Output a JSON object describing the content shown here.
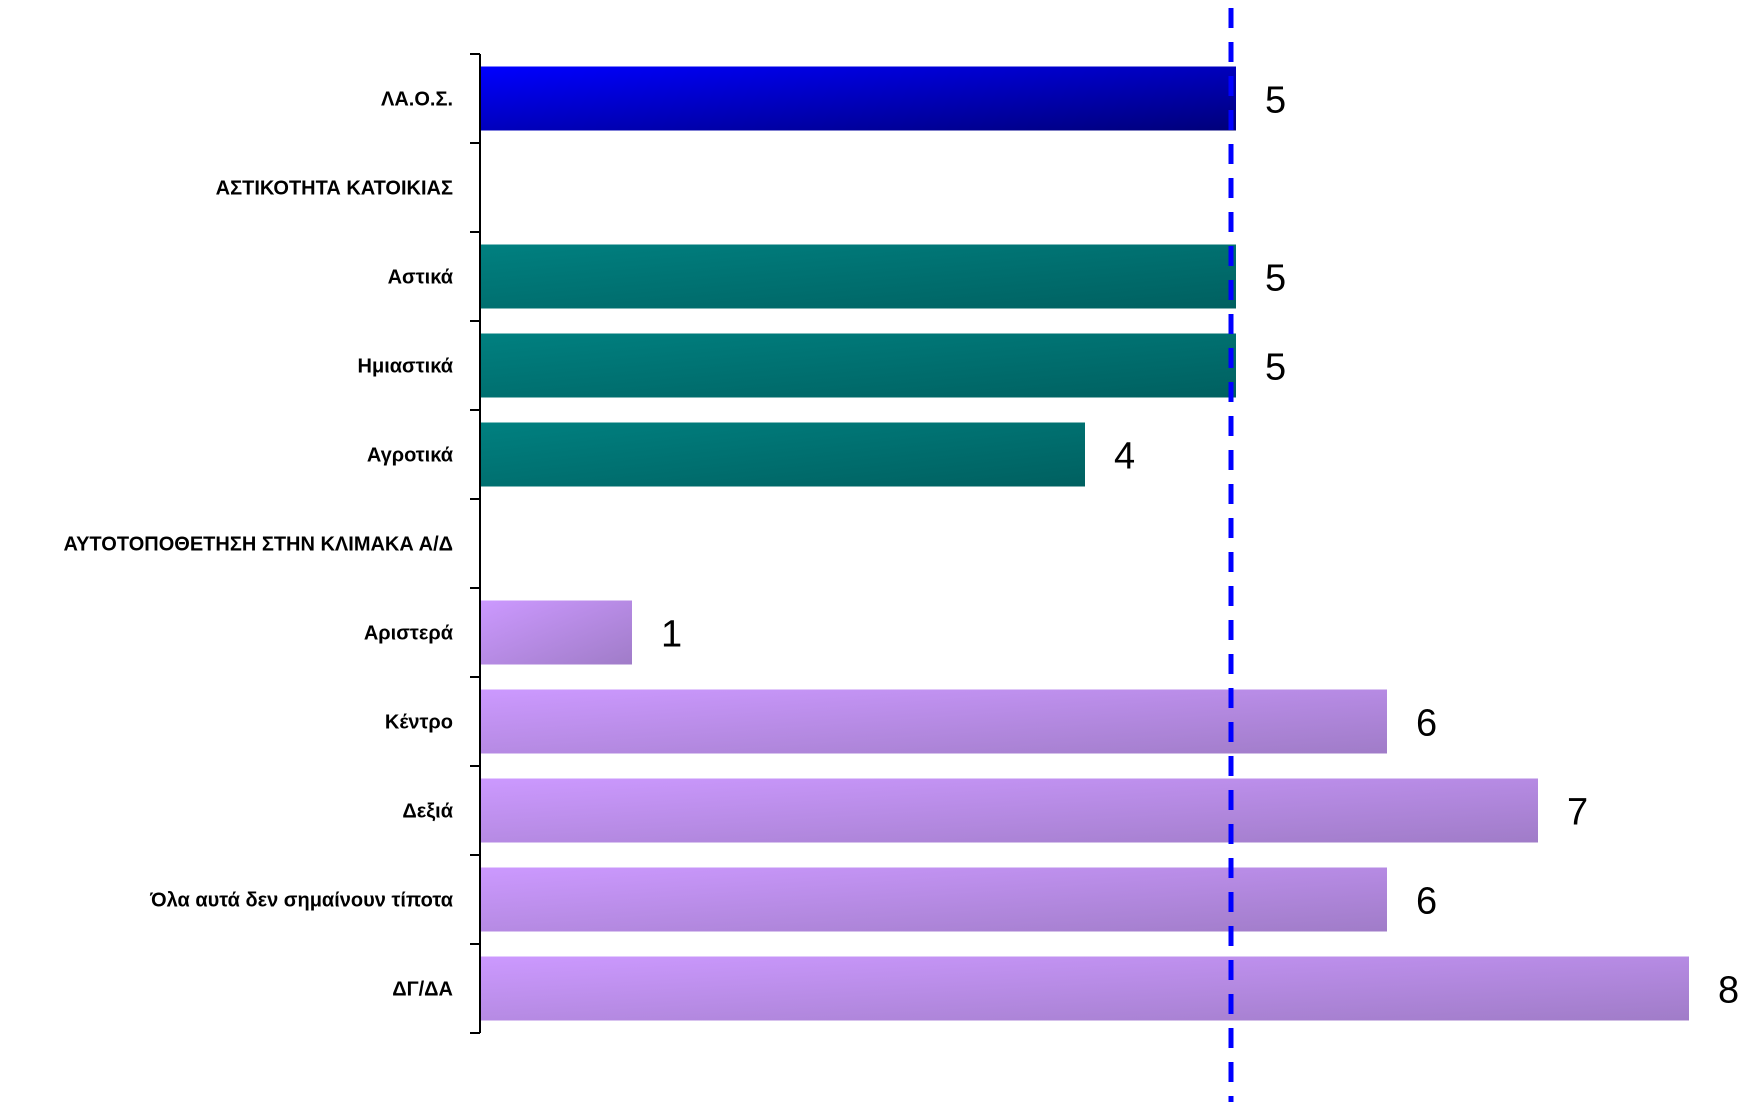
{
  "chart_data": {
    "type": "bar",
    "orientation": "horizontal",
    "categories": [
      "ΛΑ.Ο.Σ.",
      "ΑΣΤΙΚΟΤΗΤΑ ΚΑΤΟΙΚΙΑΣ",
      "Αστικά",
      "Ημιαστικά",
      "Αγροτικά",
      "ΑΥΤΟΤΟΠΟΘΕΤΗΣΗ ΣΤΗΝ ΚΛΙΜΑΚΑ Α/Δ",
      "Αριστερά",
      "Κέντρο",
      "Δεξιά",
      "Όλα αυτά δεν σημαίνουν τίποτα",
      "ΔΓ/ΔΑ"
    ],
    "values": [
      5,
      null,
      5,
      5,
      4,
      null,
      1,
      6,
      7,
      6,
      8
    ],
    "value_labels": [
      "5",
      "",
      "5",
      "5",
      "4",
      "",
      "1",
      "6",
      "7",
      "6",
      "8"
    ],
    "bar_groups": [
      "total",
      "header",
      "urbanity",
      "urbanity",
      "urbanity",
      "header",
      "ideology",
      "ideology",
      "ideology",
      "ideology",
      "ideology"
    ],
    "colors": {
      "total": [
        "#0000ff",
        "#00007a"
      ],
      "urbanity": [
        "#008080",
        "#006060"
      ],
      "ideology": [
        "#cc99ff",
        "#a07cc8"
      ],
      "reference_line": "#0000ff"
    },
    "xlim": [
      0,
      8
    ],
    "reference_line": {
      "value": 5,
      "style": "dashed"
    },
    "title": "",
    "xlabel": "",
    "ylabel": "",
    "grid": false,
    "legend": "none"
  }
}
